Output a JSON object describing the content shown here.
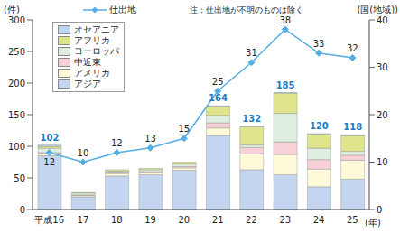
{
  "chart_data": {
    "type": "bar",
    "stacked": true,
    "note": "注：仕出地が不明のものは除く",
    "y_label": "(件)",
    "y2_label": "(国(地域))",
    "x_label": "(年)",
    "categories": [
      "平成16",
      "17",
      "18",
      "19",
      "20",
      "21",
      "22",
      "23",
      "24",
      "25"
    ],
    "series": [
      {
        "name": "アジア",
        "color": "#c4d6ef",
        "values": [
          85,
          20,
          53,
          55,
          62,
          117,
          63,
          55,
          36,
          48
        ]
      },
      {
        "name": "アメリカ",
        "color": "#fdf9d9",
        "values": [
          3,
          2,
          4,
          3,
          4,
          12,
          25,
          32,
          28,
          30
        ]
      },
      {
        "name": "中近東",
        "color": "#f7d0d8",
        "values": [
          2,
          1,
          1,
          2,
          2,
          8,
          10,
          20,
          15,
          8
        ]
      },
      {
        "name": "ヨーロッパ",
        "color": "#deefdf",
        "values": [
          7,
          3,
          3,
          3,
          4,
          12,
          4,
          45,
          18,
          6
        ]
      },
      {
        "name": "アフリカ",
        "color": "#dfe58c",
        "values": [
          3,
          1,
          2,
          2,
          3,
          14,
          29,
          32,
          22,
          25
        ]
      },
      {
        "name": "オセアニア",
        "color": "#bfd5f1",
        "values": [
          2,
          0,
          0,
          0,
          0,
          1,
          1,
          1,
          1,
          1
        ]
      },
      {
        "name": "仕出地",
        "type": "line",
        "axis": "y2",
        "color": "#55ade3",
        "marker": "diamond",
        "data_labels": true,
        "values": [
          12,
          10,
          12,
          13,
          15,
          25,
          31,
          38,
          33,
          32
        ]
      }
    ],
    "totals": [
      102,
      27,
      63,
      65,
      75,
      164,
      132,
      185,
      120,
      118
    ],
    "data_labels": true,
    "ylim": [
      0,
      300
    ],
    "yticks": [
      0,
      50,
      100,
      150,
      200,
      250,
      300
    ],
    "y2lim": [
      0,
      40
    ],
    "y2ticks": [
      0,
      10,
      20,
      30,
      40
    ]
  }
}
